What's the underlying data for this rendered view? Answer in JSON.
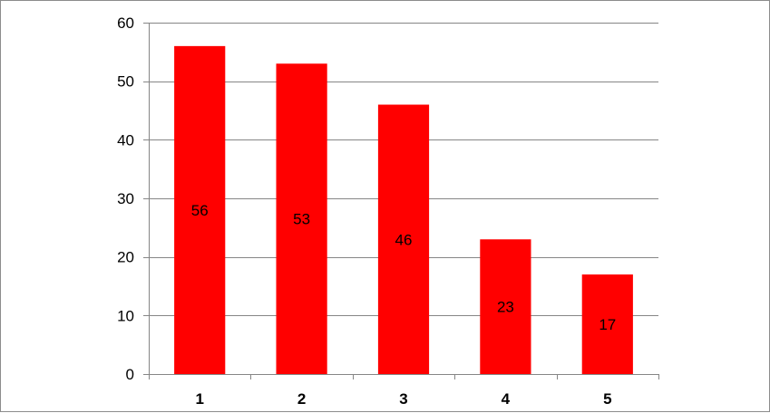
{
  "chart_data": {
    "type": "bar",
    "categories": [
      "1",
      "2",
      "3",
      "4",
      "5"
    ],
    "values": [
      56,
      53,
      46,
      23,
      17
    ],
    "data_labels": [
      "56",
      "53",
      "46",
      "23",
      "17"
    ],
    "title": "",
    "xlabel": "",
    "ylabel": "",
    "ylim": [
      0,
      60
    ],
    "yticks": [
      "0",
      "10",
      "20",
      "30",
      "40",
      "50",
      "60"
    ],
    "grid": true,
    "legend": "none",
    "bar_color": "#ff0000"
  }
}
